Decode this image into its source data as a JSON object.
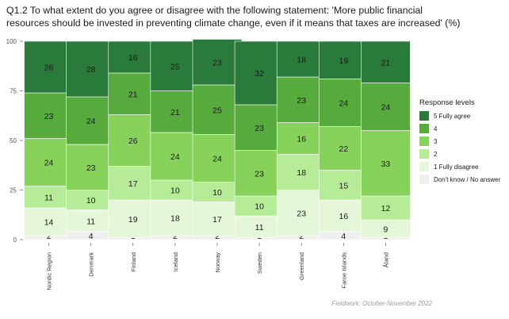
{
  "title_line1": "Q1.2 To what extent do you agree or disagree with the following statement: 'More public financial",
  "title_line2": "resources should be invested in preventing climate change, even if it means that taxes are increased' (%)",
  "footnote": "Fieldwork: October-November 2022",
  "chart_data": {
    "type": "bar",
    "stacked": true,
    "title": "Q1.2 To what extent do you agree or disagree with the following statement: 'More public financial resources should be invested in preventing climate change, even if it means that taxes are increased' (%)",
    "xlabel": "",
    "ylabel": "",
    "ylim": [
      0,
      100
    ],
    "yticks": [
      0,
      25,
      50,
      75,
      100
    ],
    "grid": true,
    "legend_position": "right",
    "legend_title": "Response levels",
    "categories": [
      "Nordic Region",
      "Denmark",
      "Finland",
      "Iceland",
      "Norway",
      "Sweden",
      "Greenland",
      "Faroe Islands",
      "Åland"
    ],
    "series": [
      {
        "name": "Don't know / No answer",
        "color": "#efefef",
        "values": [
          2,
          4,
          1,
          2,
          2,
          1,
          2,
          4,
          1
        ]
      },
      {
        "name": "1 Fully disagree",
        "color": "#e5f7d8",
        "values": [
          14,
          11,
          19,
          18,
          17,
          11,
          23,
          16,
          9
        ]
      },
      {
        "name": "2",
        "color": "#b6ec97",
        "values": [
          11,
          10,
          17,
          10,
          10,
          10,
          18,
          15,
          12
        ]
      },
      {
        "name": "3",
        "color": "#86d25b",
        "values": [
          24,
          23,
          26,
          24,
          24,
          23,
          16,
          22,
          33
        ]
      },
      {
        "name": "4",
        "color": "#57ab3d",
        "values": [
          23,
          24,
          21,
          21,
          25,
          23,
          23,
          24,
          24
        ]
      },
      {
        "name": "5 Fully agree",
        "color": "#2a7b3b",
        "values": [
          26,
          28,
          16,
          25,
          23,
          32,
          18,
          19,
          21
        ]
      }
    ]
  }
}
